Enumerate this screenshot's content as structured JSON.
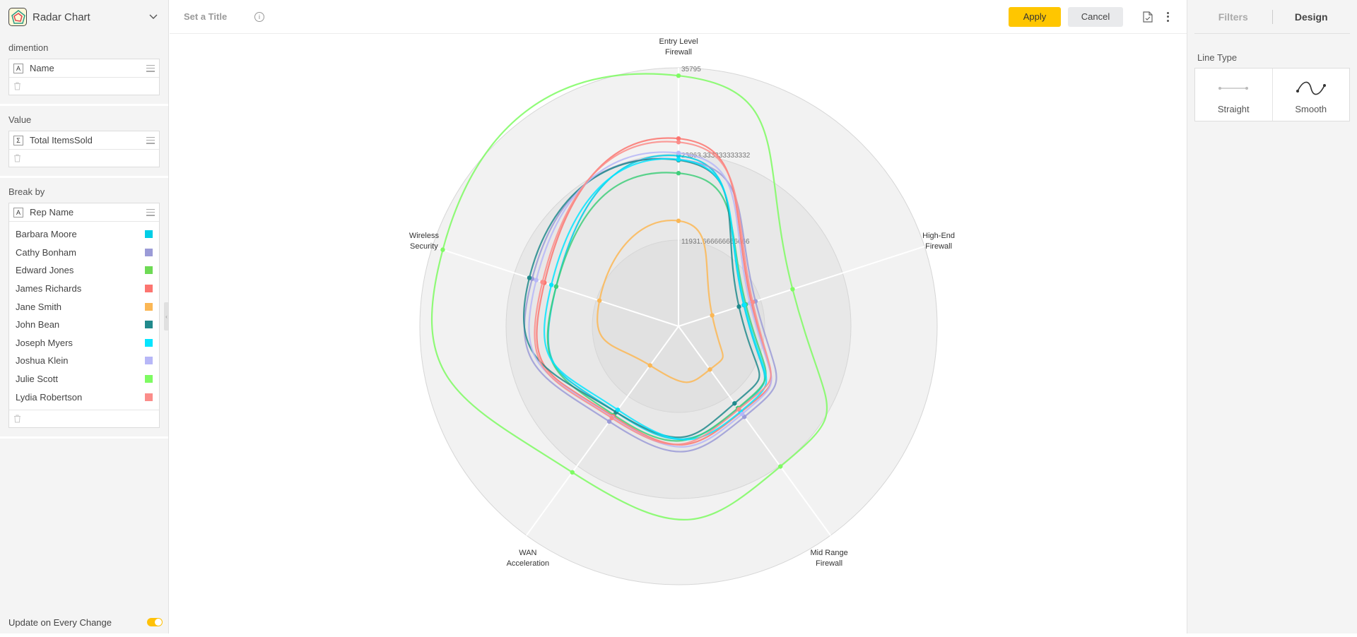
{
  "left_panel": {
    "chart_type_label": "Radar Chart",
    "dimension": {
      "label": "dimention",
      "field": {
        "type": "A",
        "name": "Name"
      }
    },
    "value": {
      "label": "Value",
      "field": {
        "type": "Σ",
        "name": "Total ItemsSold"
      }
    },
    "break_by": {
      "label": "Break by",
      "field": {
        "type": "A",
        "name": "Rep Name"
      },
      "members": [
        {
          "name": "Barbara Moore",
          "color": "#00cee6"
        },
        {
          "name": "Cathy Bonham",
          "color": "#9b9bd7"
        },
        {
          "name": "Edward Jones",
          "color": "#6eda55"
        },
        {
          "name": "James Richards",
          "color": "#fc7570"
        },
        {
          "name": "Jane Smith",
          "color": "#fbb755"
        },
        {
          "name": "John Bean",
          "color": "#218a8c"
        },
        {
          "name": "Joseph Myers",
          "color": "#06e5ff"
        },
        {
          "name": "Joshua Klein",
          "color": "#b7b7f7"
        },
        {
          "name": "Julie Scott",
          "color": "#7efb62"
        },
        {
          "name": "Lydia Robertson",
          "color": "#fb8d8a"
        }
      ]
    },
    "footer_label": "Update on Every Change",
    "footer_toggle_on": true
  },
  "topbar": {
    "title_placeholder": "Set a Title",
    "apply_label": "Apply",
    "cancel_label": "Cancel"
  },
  "right_panel": {
    "tabs": [
      {
        "label": "Filters",
        "active": false
      },
      {
        "label": "Design",
        "active": true
      }
    ],
    "line_type_label": "Line Type",
    "line_types": [
      {
        "label": "Straight",
        "icon": "straight-line-icon"
      },
      {
        "label": "Smooth",
        "icon": "smooth-line-icon"
      }
    ]
  },
  "chart_data": {
    "type": "radar",
    "categories": [
      [
        "Entry Level",
        "Firewall"
      ],
      [
        "High-End",
        "Firewall"
      ],
      [
        "Mid Range",
        "Firewall"
      ],
      [
        "WAN",
        "Acceleration"
      ],
      [
        "Wireless",
        "Security"
      ]
    ],
    "max": 35795,
    "ring_labels": [
      "35795",
      "23863.333333333332",
      "11931.666666666666"
    ],
    "series": [
      {
        "name": "Barbara Moore",
        "color": "#00cee6",
        "values": [
          23600,
          9500,
          14100,
          14700,
          17800
        ]
      },
      {
        "name": "Cathy Bonham",
        "color": "#9b9bd7",
        "values": [
          23100,
          11200,
          15500,
          16300,
          21300
        ]
      },
      {
        "name": "Edward Jones",
        "color": "#3fce7a",
        "values": [
          21200,
          9800,
          14000,
          15200,
          17800
        ]
      },
      {
        "name": "James Richards",
        "color": "#fc7570",
        "values": [
          26000,
          10600,
          14700,
          15400,
          19500
        ]
      },
      {
        "name": "Jane Smith",
        "color": "#fbb755",
        "values": [
          14600,
          4900,
          7400,
          6700,
          11500
        ]
      },
      {
        "name": "John Bean",
        "color": "#218a8c",
        "values": [
          23000,
          8800,
          13200,
          14700,
          21700
        ]
      },
      {
        "name": "Joseph Myers",
        "color": "#06e5ff",
        "values": [
          23100,
          9600,
          14600,
          14300,
          18500
        ]
      },
      {
        "name": "Joshua Klein",
        "color": "#b7b7f7",
        "values": [
          24000,
          10400,
          15000,
          15600,
          20700
        ]
      },
      {
        "name": "Julie Scott",
        "color": "#7efb62",
        "values": [
          34700,
          16600,
          24000,
          25000,
          34300
        ]
      },
      {
        "name": "Lydia Robertson",
        "color": "#fb8d8a",
        "values": [
          25500,
          10800,
          14200,
          15700,
          19800
        ]
      }
    ]
  }
}
